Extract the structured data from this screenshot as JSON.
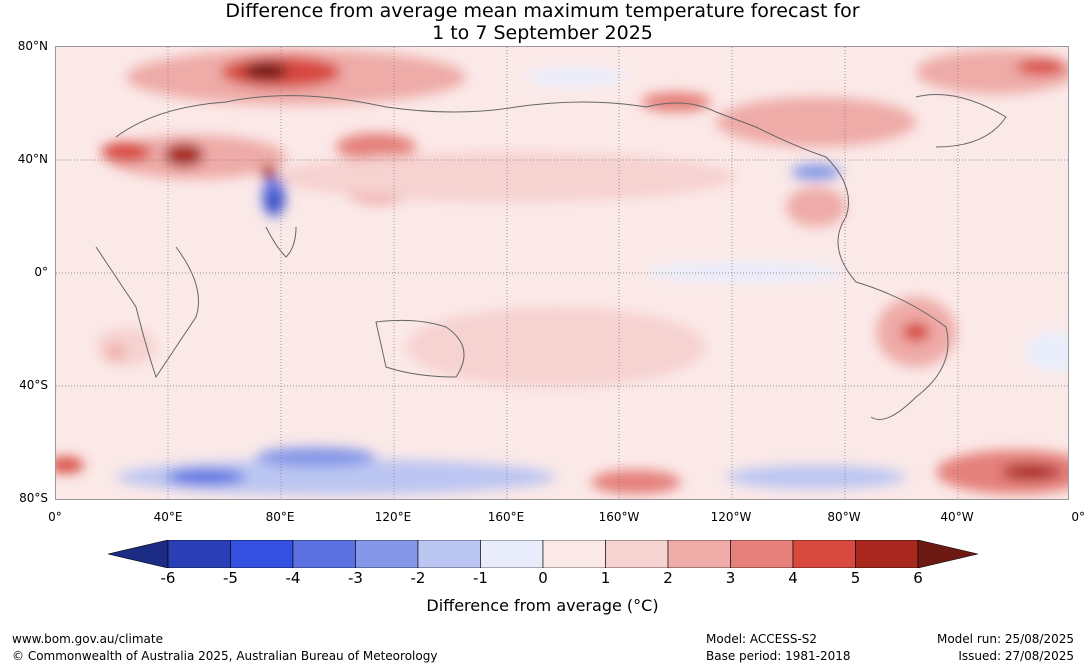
{
  "title_line1": "Difference from average mean maximum temperature forecast for",
  "title_line2": "1 to 7 September 2025",
  "lat_labels": [
    "80°N",
    "40°N",
    "0°",
    "40°S",
    "80°S"
  ],
  "lon_labels": [
    "0°",
    "40°E",
    "80°E",
    "120°E",
    "160°E",
    "160°W",
    "120°W",
    "80°W",
    "40°W",
    "0°"
  ],
  "colorbar": {
    "ticks": [
      "-6",
      "-5",
      "-4",
      "-3",
      "-2",
      "-1",
      "0",
      "1",
      "2",
      "3",
      "4",
      "5",
      "6"
    ],
    "colors": [
      "#1c2b84",
      "#2a3fb5",
      "#3350e0",
      "#5b71e2",
      "#8497e8",
      "#bcc6f2",
      "#e9edfb",
      "#fbe9e8",
      "#f6d2d0",
      "#eeaba7",
      "#e5807a",
      "#d84a40",
      "#a8281f",
      "#6e1a14"
    ],
    "label": "Difference from average (°C)"
  },
  "footer": {
    "website": "www.bom.gov.au/climate",
    "copyright": "© Commonwealth of Australia 2025, Australian Bureau of Meteorology",
    "model": "Model: ACCESS-S2",
    "base_period": "Base period: 1981-2018",
    "model_run": "Model run: 25/08/2025",
    "issued": "Issued: 27/08/2025"
  }
}
